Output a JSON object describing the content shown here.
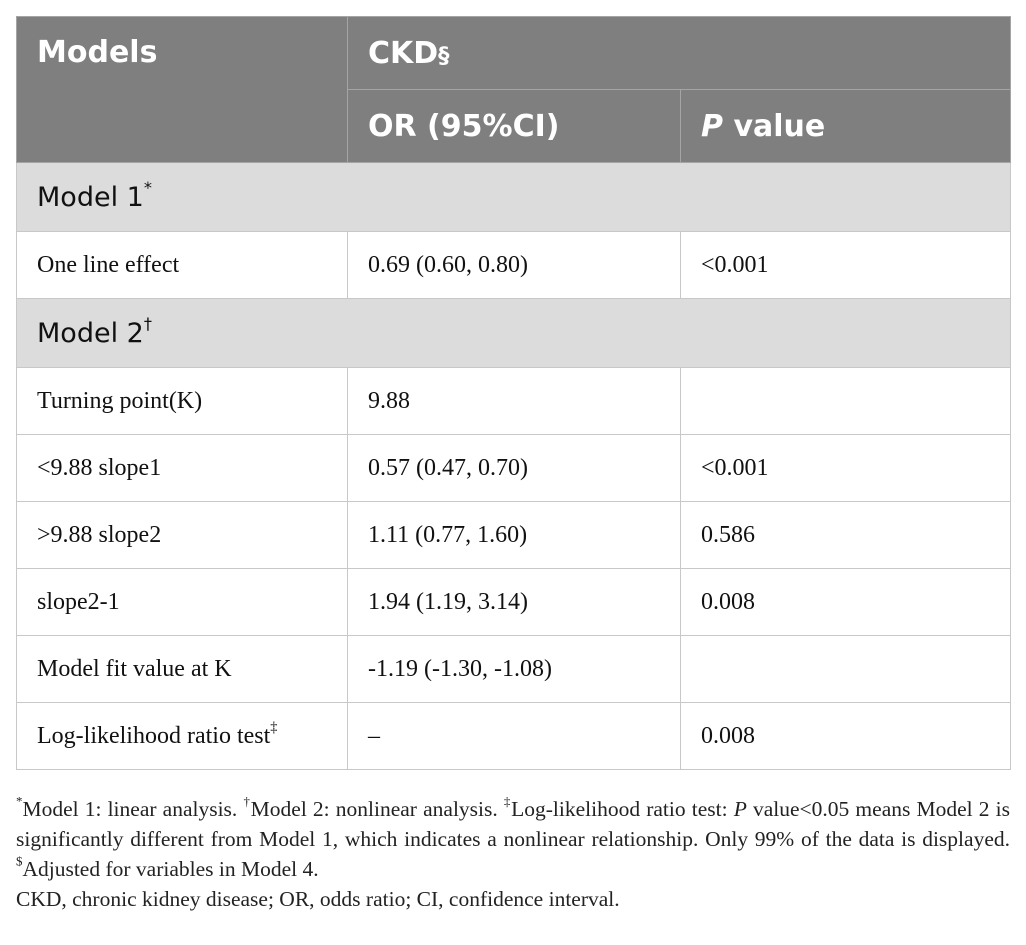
{
  "header": {
    "models_label": "Models",
    "outcome_label": "CKD",
    "outcome_sup": "§",
    "or_label": "OR (95%CI)",
    "p_italic": "P",
    "p_rest": " value"
  },
  "sections": [
    {
      "title": "Model 1",
      "sup": "*",
      "rows": [
        {
          "label": "One line effect",
          "label_sup": "",
          "or": "0.69 (0.60, 0.80)",
          "p": "<0.001"
        }
      ]
    },
    {
      "title": "Model 2",
      "sup": "†",
      "rows": [
        {
          "label": "Turning point(K)",
          "label_sup": "",
          "or": "9.88",
          "p": ""
        },
        {
          "label": "<9.88 slope1",
          "label_sup": "",
          "or": "0.57 (0.47, 0.70)",
          "p": "<0.001"
        },
        {
          "label": ">9.88 slope2",
          "label_sup": "",
          "or": "1.11 (0.77, 1.60)",
          "p": "0.586"
        },
        {
          "label": "slope2-1",
          "label_sup": "",
          "or": "1.94 (1.19, 3.14)",
          "p": "0.008"
        },
        {
          "label": "Model fit value at K",
          "label_sup": "",
          "or": "-1.19 (-1.30, -1.08)",
          "p": ""
        },
        {
          "label": "Log-likelihood ratio test",
          "label_sup": "‡",
          "or": "–",
          "p": "0.008"
        }
      ]
    }
  ],
  "footnote": {
    "fn1_sup": "*",
    "fn1": "Model 1: linear analysis. ",
    "fn2_sup": "†",
    "fn2": "Model 2: nonlinear analysis. ",
    "fn3_sup": "‡",
    "fn3a": "Log-likelihood ratio test: ",
    "fn3_italic": "P",
    "fn3b": " value<0.05 means Model 2 is significantly different from Model 1, which indicates a nonlinear relationship. Only 99% of the data is displayed. ",
    "fn4_sup": "$",
    "fn4": "Adjusted for variables in Model 4.",
    "abbrev": "CKD, chronic kidney disease; OR, odds ratio; CI, confidence interval."
  }
}
